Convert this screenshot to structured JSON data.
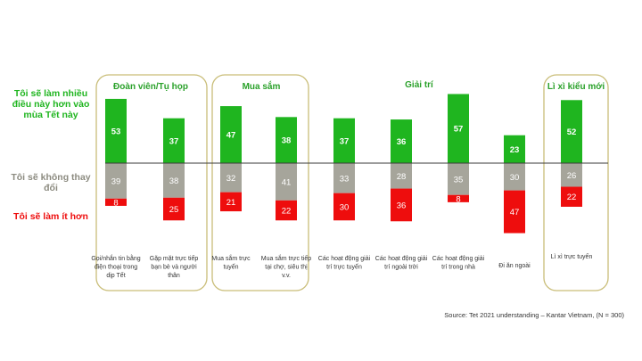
{
  "legend": {
    "more": "Tôi sẽ làm nhiều điều này hơn vào mùa Tết này",
    "same": "Tôi sẽ không thay đổi",
    "less": "Tôi sẽ làm ít hơn"
  },
  "colors": {
    "more": "#1fb51f",
    "same": "#a6a59b",
    "less": "#ee0d0d",
    "group_border": "#c9bd78",
    "group_title": "#2aa12a"
  },
  "source": "Source: Tet 2021 understanding – Kantar Vietnam, (N = 300)",
  "chart_data": {
    "type": "bar",
    "stacked_diverging": true,
    "series": [
      {
        "name": "Tôi sẽ làm nhiều điều này hơn vào mùa Tết này",
        "values": [
          53,
          37,
          47,
          38,
          37,
          36,
          57,
          23,
          52
        ]
      },
      {
        "name": "Tôi sẽ không thay đổi",
        "values": [
          39,
          38,
          32,
          41,
          33,
          28,
          35,
          30,
          26
        ]
      },
      {
        "name": "Tôi sẽ làm ít hơn",
        "values": [
          8,
          25,
          21,
          22,
          30,
          36,
          8,
          47,
          22
        ]
      }
    ],
    "categories": [
      "Gọi/nhắn tin bằng điện thoại trong dịp Tết",
      "Gặp mặt trực tiếp bạn bè và người thân",
      "Mua sắm trực tuyến",
      "Mua sắm trực tiếp tại chợ, siêu thị v.v.",
      "Các hoạt động giải trí trực tuyến",
      "Các hoạt động giải trí ngoài trời",
      "Các hoạt động giải trí trong nhà",
      "Đi ăn ngoài",
      "Lì xì trực tuyến"
    ],
    "groups": [
      {
        "title": "Đoàn viên/Tụ họp",
        "members": [
          0,
          1
        ]
      },
      {
        "title": "Mua sắm",
        "members": [
          2,
          3
        ]
      },
      {
        "title": "Giải trí",
        "members": [
          4,
          5,
          6,
          7
        ]
      },
      {
        "title": "Lì xì kiểu mới",
        "members": [
          8
        ]
      }
    ]
  }
}
